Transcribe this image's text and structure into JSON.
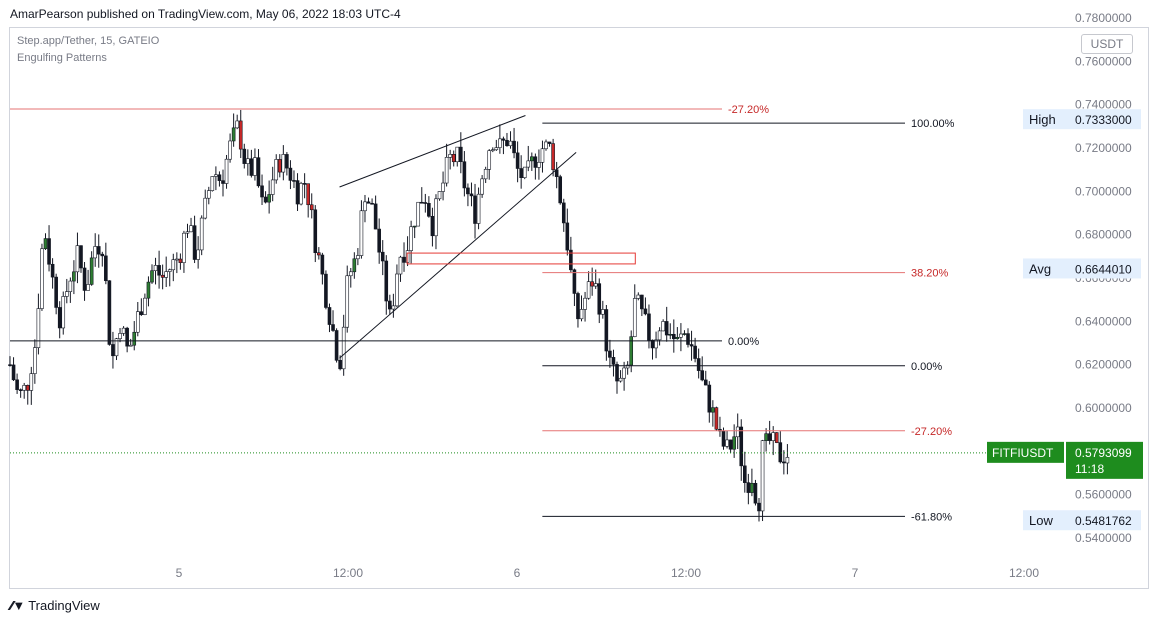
{
  "header": {
    "published": "AmarPearson published on TradingView.com, May 06, 2022 18:03 UTC-4"
  },
  "legend": {
    "symbol": "Step.app/Tether, 15, GATEIO",
    "indicator": "Engulfing Patterns"
  },
  "currency_button": "USDT",
  "footer": {
    "brand": "TradingView"
  },
  "colors": {
    "up": "#2e7d32",
    "down": "#c62828",
    "fib_red": "#e57373",
    "line": "#131722",
    "box": "#e53935",
    "last_price": "#1e8c1e"
  },
  "chart_data": {
    "type": "candlestick",
    "y_axis": {
      "min": 0.53,
      "max": 0.79,
      "ticks": [
        0.78,
        0.76,
        0.74,
        0.72,
        0.7,
        0.68,
        0.66,
        0.64,
        0.62,
        0.6,
        0.58,
        0.56,
        0.54
      ],
      "tick_labels": [
        "0.7800000",
        "0.7600000",
        "0.7400000",
        "0.7200000",
        "0.7000000",
        "0.6800000",
        "0.6600000",
        "0.6400000",
        "0.6200000",
        "0.6000000",
        "0.5800000",
        "0.5600000",
        "0.5400000"
      ]
    },
    "x_axis": {
      "labels": [
        {
          "text": "5",
          "t": 0.2
        },
        {
          "text": "12:00",
          "t": 0.4
        },
        {
          "text": "6",
          "t": 0.6
        },
        {
          "text": "12:00",
          "t": 0.8
        },
        {
          "text": "7",
          "t": 1.0
        },
        {
          "text": "12:00",
          "t": 1.2
        }
      ]
    },
    "price_path": [
      [
        0.0,
        0.62
      ],
      [
        0.01,
        0.605
      ],
      [
        0.02,
        0.61
      ],
      [
        0.03,
        0.63
      ],
      [
        0.04,
        0.685
      ],
      [
        0.05,
        0.66
      ],
      [
        0.06,
        0.64
      ],
      [
        0.07,
        0.66
      ],
      [
        0.08,
        0.67
      ],
      [
        0.09,
        0.655
      ],
      [
        0.1,
        0.675
      ],
      [
        0.11,
        0.676
      ],
      [
        0.12,
        0.62
      ],
      [
        0.13,
        0.64
      ],
      [
        0.14,
        0.625
      ],
      [
        0.15,
        0.64
      ],
      [
        0.16,
        0.655
      ],
      [
        0.17,
        0.665
      ],
      [
        0.18,
        0.66
      ],
      [
        0.19,
        0.665
      ],
      [
        0.2,
        0.67
      ],
      [
        0.21,
        0.685
      ],
      [
        0.22,
        0.67
      ],
      [
        0.23,
        0.69
      ],
      [
        0.24,
        0.71
      ],
      [
        0.25,
        0.705
      ],
      [
        0.26,
        0.72
      ],
      [
        0.27,
        0.73
      ],
      [
        0.28,
        0.71
      ],
      [
        0.29,
        0.71
      ],
      [
        0.3,
        0.69
      ],
      [
        0.31,
        0.705
      ],
      [
        0.32,
        0.715
      ],
      [
        0.33,
        0.71
      ],
      [
        0.34,
        0.7
      ],
      [
        0.35,
        0.705
      ],
      [
        0.36,
        0.68
      ],
      [
        0.37,
        0.66
      ],
      [
        0.38,
        0.64
      ],
      [
        0.39,
        0.62
      ],
      [
        0.4,
        0.66
      ],
      [
        0.41,
        0.67
      ],
      [
        0.42,
        0.7
      ],
      [
        0.43,
        0.69
      ],
      [
        0.44,
        0.665
      ],
      [
        0.45,
        0.64
      ],
      [
        0.46,
        0.67
      ],
      [
        0.47,
        0.675
      ],
      [
        0.48,
        0.69
      ],
      [
        0.49,
        0.7
      ],
      [
        0.5,
        0.685
      ],
      [
        0.51,
        0.7
      ],
      [
        0.52,
        0.715
      ],
      [
        0.53,
        0.715
      ],
      [
        0.54,
        0.7
      ],
      [
        0.55,
        0.69
      ],
      [
        0.56,
        0.71
      ],
      [
        0.57,
        0.725
      ],
      [
        0.58,
        0.72
      ],
      [
        0.59,
        0.725
      ],
      [
        0.6,
        0.71
      ],
      [
        0.61,
        0.705
      ],
      [
        0.62,
        0.715
      ],
      [
        0.63,
        0.72
      ],
      [
        0.64,
        0.72
      ],
      [
        0.65,
        0.7
      ],
      [
        0.66,
        0.675
      ],
      [
        0.67,
        0.64
      ],
      [
        0.68,
        0.65
      ],
      [
        0.69,
        0.66
      ],
      [
        0.7,
        0.645
      ],
      [
        0.71,
        0.62
      ],
      [
        0.72,
        0.61
      ],
      [
        0.73,
        0.615
      ],
      [
        0.74,
        0.65
      ],
      [
        0.75,
        0.64
      ],
      [
        0.76,
        0.63
      ],
      [
        0.77,
        0.64
      ],
      [
        0.78,
        0.635
      ],
      [
        0.79,
        0.63
      ],
      [
        0.8,
        0.635
      ],
      [
        0.81,
        0.625
      ],
      [
        0.82,
        0.61
      ],
      [
        0.83,
        0.6
      ],
      [
        0.84,
        0.585
      ],
      [
        0.85,
        0.58
      ],
      [
        0.86,
        0.59
      ],
      [
        0.87,
        0.565
      ],
      [
        0.88,
        0.57
      ],
      [
        0.885,
        0.55
      ],
      [
        0.89,
        0.58
      ],
      [
        0.9,
        0.585
      ],
      [
        0.91,
        0.578
      ],
      [
        0.92,
        0.579
      ]
    ],
    "fib_levels": [
      {
        "label": "-27.20%",
        "price": 0.738,
        "color": "red",
        "span": "left"
      },
      {
        "label": "0.00%",
        "price": 0.631,
        "color": "black",
        "span": "left"
      },
      {
        "label": "100.00%",
        "price": 0.7315,
        "color": "black",
        "span": "right"
      },
      {
        "label": "38.20%",
        "price": 0.6625,
        "color": "red",
        "span": "right"
      },
      {
        "label": "0.00%",
        "price": 0.6195,
        "color": "black",
        "span": "right"
      },
      {
        "label": "-27.20%",
        "price": 0.5895,
        "color": "red",
        "span": "right"
      },
      {
        "label": "-61.80%",
        "price": 0.55,
        "color": "black",
        "span": "right"
      }
    ],
    "markers": [
      {
        "label": "High",
        "value": "0.7333000",
        "price": 0.7333
      },
      {
        "label": "Avg",
        "value": "0.6644010",
        "price": 0.6644
      },
      {
        "label": "Low",
        "value": "0.5481762",
        "price": 0.5482
      }
    ],
    "last_price": {
      "label": "FITFIUSDT",
      "value": "0.5793099",
      "countdown": "11:18",
      "price": 0.5793
    }
  }
}
